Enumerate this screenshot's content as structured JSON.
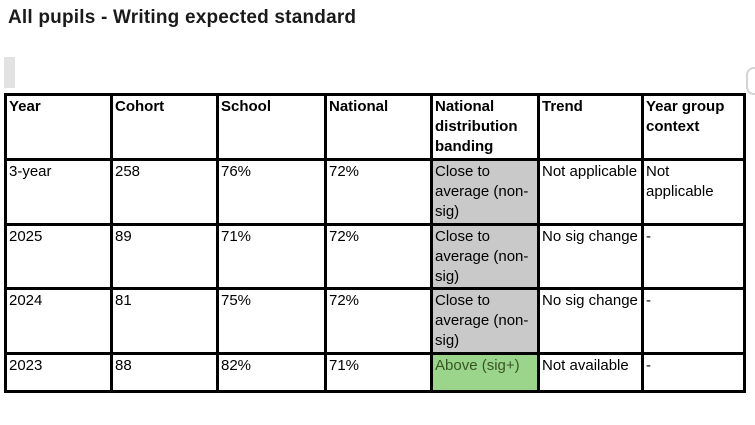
{
  "page": {
    "title": "All pupils - Writing expected standard"
  },
  "colors": {
    "banding_average_bg": "#c9c9c9",
    "banding_above_bg": "#9bd48b",
    "banding_above_text": "#375623",
    "table_border": "#000000"
  },
  "table": {
    "columns": [
      "Year",
      "Cohort",
      "School",
      "National",
      "National distribution banding",
      "Trend",
      "Year group context"
    ],
    "rows": [
      {
        "year": "3-year",
        "cohort": "258",
        "school": "76%",
        "national": "72%",
        "banding": "Close to average (non-sig)",
        "banding_style": "average",
        "trend": "Not applicable",
        "context": "Not applicable",
        "short": false
      },
      {
        "year": "2025",
        "cohort": "89",
        "school": "71%",
        "national": "72%",
        "banding": "Close to average (non-sig)",
        "banding_style": "average",
        "trend": "No sig change",
        "context": "-",
        "short": false
      },
      {
        "year": "2024",
        "cohort": "81",
        "school": "75%",
        "national": "72%",
        "banding": "Close to average (non-sig)",
        "banding_style": "average",
        "trend": "No sig change",
        "context": "-",
        "short": false
      },
      {
        "year": "2023",
        "cohort": "88",
        "school": "82%",
        "national": "71%",
        "banding": "Above (sig+)",
        "banding_style": "above",
        "trend": "Not available",
        "context": "-",
        "short": true
      }
    ]
  }
}
